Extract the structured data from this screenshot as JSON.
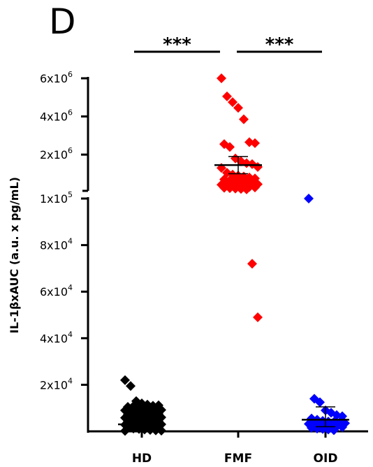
{
  "panel_label": "D",
  "chart_data": {
    "type": "scatter",
    "title": "",
    "xlabel": "",
    "ylabel": "IL-1βxAUC (a.u. x pg/mL)",
    "categories": [
      "HD",
      "FMF",
      "OID"
    ],
    "y_axis_segments": [
      {
        "name": "lower",
        "ylim": [
          0,
          100000
        ],
        "ticks": [
          {
            "value": 20000,
            "mantissa": "2x10",
            "exponent": "4"
          },
          {
            "value": 40000,
            "mantissa": "4x10",
            "exponent": "4"
          },
          {
            "value": 60000,
            "mantissa": "6x10",
            "exponent": "4"
          },
          {
            "value": 80000,
            "mantissa": "8x10",
            "exponent": "4"
          },
          {
            "value": 100000,
            "mantissa": "1x10",
            "exponent": "5"
          }
        ]
      },
      {
        "name": "upper",
        "ylim": [
          100000,
          6000000
        ],
        "axis_break": true,
        "ticks": [
          {
            "value": 2000000,
            "mantissa": "2x10",
            "exponent": "6"
          },
          {
            "value": 4000000,
            "mantissa": "4x10",
            "exponent": "6"
          },
          {
            "value": 6000000,
            "mantissa": "6x10",
            "exponent": "6"
          }
        ]
      }
    ],
    "series": [
      {
        "category": "HD",
        "color": "#000000",
        "marker": "diamond",
        "mean": 3000,
        "error_low": 2200,
        "error_high": 3800,
        "values": [
          22000,
          19500,
          13000,
          12000,
          11500,
          11000,
          11200,
          10500,
          10800,
          10200,
          10000,
          9800,
          9500,
          9200,
          9000,
          8800,
          8500,
          8200,
          8000,
          7800,
          7500,
          7200,
          7000,
          6800,
          6600,
          6400,
          6200,
          6000,
          5800,
          5500,
          5200,
          5000,
          4800,
          4600,
          4400,
          4200,
          4000,
          3800,
          3600,
          3400,
          3200,
          3000,
          2800,
          2600,
          2400,
          2200,
          2000,
          1800,
          1600,
          1400,
          1200,
          1000,
          800,
          600,
          400,
          300,
          200
        ]
      },
      {
        "category": "FMF",
        "color": "#ff0000",
        "marker": "diamond",
        "mean": 1450000,
        "error_low": 1000000,
        "error_high": 1900000,
        "values": [
          6000000,
          5050000,
          4750000,
          4450000,
          3850000,
          2650000,
          2600000,
          2550000,
          2400000,
          1800000,
          1650000,
          1550000,
          1500000,
          1350000,
          1300000,
          1050000,
          950000,
          900000,
          850000,
          800000,
          750000,
          700000,
          650000,
          600000,
          560000,
          520000,
          480000,
          450000,
          420000,
          400000,
          380000,
          350000,
          320000,
          300000,
          280000,
          260000,
          240000,
          220000,
          200000,
          180000,
          72000,
          49000
        ]
      },
      {
        "category": "OID",
        "color": "#0000ff",
        "marker": "diamond",
        "mean": 5000,
        "error_low": 2000,
        "error_high": 10500,
        "values": [
          100000,
          14000,
          12500,
          9000,
          8000,
          7000,
          6500,
          5500,
          5000,
          4500,
          4200,
          4000,
          3800,
          3500,
          3200,
          3000,
          2800,
          2500,
          2200,
          2000,
          1800,
          1500,
          1200,
          1000,
          800,
          500
        ]
      }
    ],
    "significance": [
      {
        "from": "HD",
        "to": "FMF",
        "label": "***"
      },
      {
        "from": "FMF",
        "to": "OID",
        "label": "***"
      }
    ],
    "grid": false,
    "legend": "none"
  }
}
